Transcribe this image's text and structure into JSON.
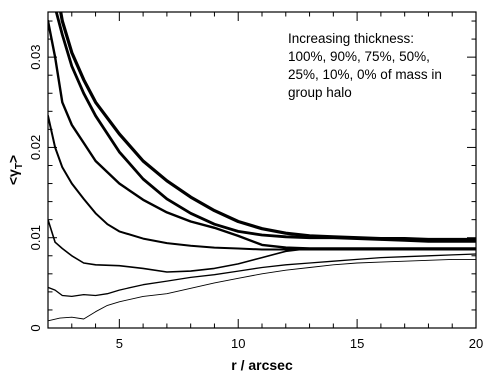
{
  "chart_data": {
    "type": "line",
    "title": "",
    "xlabel": "r / arcsec",
    "ylabel": "<γT>",
    "ylabel_main": "<γ",
    "ylabel_sub": "T",
    "ylabel_close": ">",
    "xlim": [
      2,
      20
    ],
    "ylim": [
      0,
      0.035
    ],
    "x_ticks": [
      5,
      10,
      15,
      20
    ],
    "x_tick_labels": [
      "5",
      "10",
      "15",
      "20"
    ],
    "y_ticks": [
      0,
      0.01,
      0.02,
      0.03
    ],
    "y_tick_labels": [
      "0",
      "0.01",
      "0.02",
      "0.03"
    ],
    "grid": false,
    "annotation": [
      "Increasing thickness:",
      "100%, 90%, 75%, 50%,",
      "25%, 10%, 0% of mass in",
      "group halo"
    ],
    "series": [
      {
        "stroke_width": 3.2,
        "points": [
          [
            2.0,
            0.0415
          ],
          [
            2.3,
            0.0385
          ],
          [
            2.6,
            0.034
          ],
          [
            3,
            0.0305
          ],
          [
            3.5,
            0.0275
          ],
          [
            4,
            0.025
          ],
          [
            5,
            0.0215
          ],
          [
            6,
            0.0185
          ],
          [
            7,
            0.0163
          ],
          [
            8,
            0.0145
          ],
          [
            9,
            0.013
          ],
          [
            10,
            0.0118
          ],
          [
            11,
            0.011
          ],
          [
            12,
            0.0105
          ],
          [
            13,
            0.0102
          ],
          [
            14,
            0.0101
          ],
          [
            15,
            0.01
          ],
          [
            16,
            0.0099
          ],
          [
            17,
            0.0099
          ],
          [
            18,
            0.0098
          ],
          [
            19,
            0.0098
          ],
          [
            20,
            0.0098
          ]
        ]
      },
      {
        "stroke_width": 2.8,
        "points": [
          [
            2.0,
            0.039
          ],
          [
            2.3,
            0.0355
          ],
          [
            2.6,
            0.0325
          ],
          [
            3,
            0.029
          ],
          [
            3.5,
            0.026
          ],
          [
            4,
            0.0235
          ],
          [
            5,
            0.0195
          ],
          [
            6,
            0.0165
          ],
          [
            7,
            0.0143
          ],
          [
            8,
            0.0127
          ],
          [
            9,
            0.0115
          ],
          [
            10,
            0.0107
          ],
          [
            11,
            0.0103
          ],
          [
            12,
            0.0101
          ],
          [
            13,
            0.01
          ],
          [
            14,
            0.01
          ],
          [
            15,
            0.0099
          ],
          [
            16,
            0.0098
          ],
          [
            17,
            0.0097
          ],
          [
            18,
            0.0096
          ],
          [
            19,
            0.0096
          ],
          [
            20,
            0.0096
          ]
        ]
      },
      {
        "stroke_width": 2.4,
        "points": [
          [
            2.0,
            0.034
          ],
          [
            2.3,
            0.03
          ],
          [
            2.6,
            0.025
          ],
          [
            3,
            0.0225
          ],
          [
            3.5,
            0.0205
          ],
          [
            4,
            0.0185
          ],
          [
            5,
            0.016
          ],
          [
            6,
            0.0142
          ],
          [
            7,
            0.0128
          ],
          [
            8,
            0.0118
          ],
          [
            9,
            0.0111
          ],
          [
            10,
            0.0102
          ],
          [
            11,
            0.0092
          ],
          [
            12,
            0.0089
          ],
          [
            13,
            0.0088
          ],
          [
            14,
            0.0088
          ],
          [
            15,
            0.0088
          ],
          [
            16,
            0.0088
          ],
          [
            17,
            0.0088
          ],
          [
            18,
            0.0088
          ],
          [
            19,
            0.0088
          ],
          [
            20,
            0.0088
          ]
        ]
      },
      {
        "stroke_width": 2.0,
        "points": [
          [
            2.0,
            0.0235
          ],
          [
            2.3,
            0.02
          ],
          [
            2.6,
            0.0178
          ],
          [
            3,
            0.016
          ],
          [
            3.5,
            0.0143
          ],
          [
            4,
            0.0127
          ],
          [
            4.5,
            0.0115
          ],
          [
            5,
            0.0107
          ],
          [
            6,
            0.0099
          ],
          [
            7,
            0.0094
          ],
          [
            8,
            0.0091
          ],
          [
            9,
            0.0089
          ],
          [
            10,
            0.0088
          ],
          [
            11,
            0.0087
          ],
          [
            12,
            0.0087
          ],
          [
            13,
            0.0087
          ],
          [
            14,
            0.0087
          ],
          [
            15,
            0.0087
          ],
          [
            16,
            0.0087
          ],
          [
            17,
            0.0087
          ],
          [
            18,
            0.0087
          ],
          [
            19,
            0.0087
          ],
          [
            20,
            0.0087
          ]
        ]
      },
      {
        "stroke_width": 1.6,
        "points": [
          [
            2.0,
            0.012
          ],
          [
            2.3,
            0.0095
          ],
          [
            2.6,
            0.0088
          ],
          [
            3,
            0.008
          ],
          [
            3.5,
            0.0072
          ],
          [
            4,
            0.007
          ],
          [
            5,
            0.0069
          ],
          [
            6,
            0.0066
          ],
          [
            7,
            0.0062
          ],
          [
            8,
            0.0063
          ],
          [
            9,
            0.0066
          ],
          [
            10,
            0.0071
          ],
          [
            11,
            0.0078
          ],
          [
            12,
            0.0085
          ],
          [
            13,
            0.0088
          ],
          [
            14,
            0.0088
          ],
          [
            15,
            0.0088
          ],
          [
            16,
            0.0088
          ],
          [
            17,
            0.0088
          ],
          [
            18,
            0.0088
          ],
          [
            19,
            0.0088
          ],
          [
            20,
            0.0088
          ]
        ]
      },
      {
        "stroke_width": 1.3,
        "points": [
          [
            2.0,
            0.0045
          ],
          [
            2.3,
            0.0042
          ],
          [
            2.6,
            0.0036
          ],
          [
            3,
            0.0035
          ],
          [
            3.5,
            0.0037
          ],
          [
            4,
            0.0036
          ],
          [
            4.5,
            0.0038
          ],
          [
            5,
            0.0042
          ],
          [
            6,
            0.0048
          ],
          [
            7,
            0.0052
          ],
          [
            8,
            0.0056
          ],
          [
            9,
            0.0059
          ],
          [
            10,
            0.0063
          ],
          [
            11,
            0.0067
          ],
          [
            12,
            0.007
          ],
          [
            13,
            0.0072
          ],
          [
            14,
            0.0074
          ],
          [
            15,
            0.0076
          ],
          [
            16,
            0.0078
          ],
          [
            17,
            0.0079
          ],
          [
            18,
            0.008
          ],
          [
            19,
            0.0081
          ],
          [
            20,
            0.0082
          ]
        ]
      },
      {
        "stroke_width": 0.9,
        "points": [
          [
            2.0,
            0.0008
          ],
          [
            2.5,
            0.0011
          ],
          [
            3,
            0.0012
          ],
          [
            3.5,
            0.001
          ],
          [
            4,
            0.0018
          ],
          [
            4.5,
            0.0025
          ],
          [
            5,
            0.0029
          ],
          [
            6,
            0.0035
          ],
          [
            7,
            0.0038
          ],
          [
            8,
            0.0044
          ],
          [
            9,
            0.005
          ],
          [
            10,
            0.0055
          ],
          [
            11,
            0.006
          ],
          [
            12,
            0.0064
          ],
          [
            13,
            0.0067
          ],
          [
            14,
            0.007
          ],
          [
            15,
            0.0072
          ],
          [
            16,
            0.0073
          ],
          [
            17,
            0.0074
          ],
          [
            18,
            0.0075
          ],
          [
            19,
            0.0076
          ],
          [
            20,
            0.0076
          ]
        ]
      }
    ]
  }
}
